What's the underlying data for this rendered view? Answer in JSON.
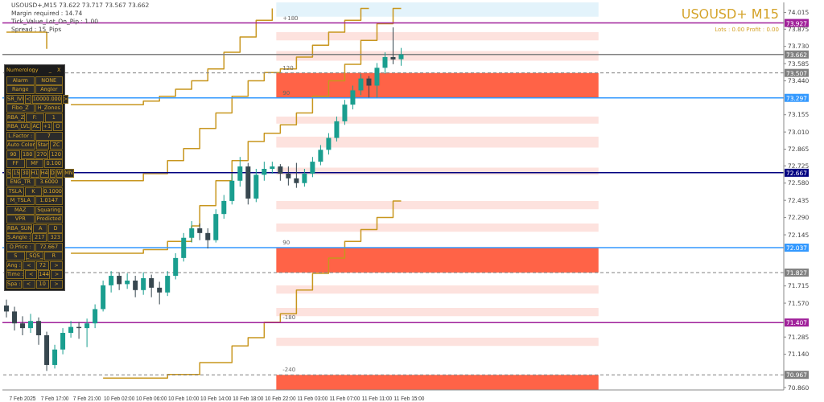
{
  "chart_data": {
    "type": "candlestick",
    "title": "USOUSD+ M15",
    "subtitle": "Lots : 0.00 Profit : 0.00",
    "categories": [
      null,
      null,
      "7 Feb 2025",
      null,
      null,
      null,
      "7 Feb 17:00",
      null,
      null,
      null,
      "7 Feb 21:00",
      null,
      null,
      null,
      "10 Feb 02:00",
      null,
      null,
      null,
      "10 Feb 06:00",
      null,
      null,
      null,
      "10 Feb 10:00",
      null,
      null,
      null,
      "10 Feb 14:00",
      null,
      null,
      null,
      "10 Feb 18:00",
      null,
      null,
      null,
      "10 Feb 22:00",
      null,
      null,
      null,
      "11 Feb 03:00",
      null,
      null,
      null,
      "11 Feb 07:00",
      null,
      null,
      null,
      "11 Feb 11:00",
      null,
      null,
      null,
      "11 Feb 15:00",
      null,
      null,
      null,
      null,
      null,
      null,
      null,
      null,
      null,
      null,
      null,
      null,
      null,
      null,
      null,
      null,
      null,
      null,
      null,
      null,
      null,
      null,
      null,
      null,
      null,
      null,
      null,
      null,
      null,
      null,
      null,
      null,
      null,
      null,
      null,
      null,
      null,
      null,
      null,
      null,
      null,
      null,
      null,
      null,
      null,
      null
    ],
    "ohlc": [
      [
        71.55,
        71.6,
        71.45,
        71.5
      ],
      [
        71.5,
        71.54,
        71.34,
        71.4
      ],
      [
        71.4,
        71.46,
        71.3,
        71.36
      ],
      [
        71.36,
        71.48,
        71.32,
        71.42
      ],
      [
        71.42,
        71.45,
        71.22,
        71.3
      ],
      [
        71.3,
        71.33,
        71.0,
        71.05
      ],
      [
        71.05,
        71.22,
        71.02,
        71.18
      ],
      [
        71.18,
        71.36,
        71.14,
        71.32
      ],
      [
        71.32,
        71.42,
        71.28,
        71.37
      ],
      [
        71.37,
        71.41,
        71.27,
        71.36
      ],
      [
        71.36,
        71.44,
        71.2,
        71.4
      ],
      [
        71.4,
        71.56,
        71.36,
        71.52
      ],
      [
        71.52,
        71.76,
        71.5,
        71.72
      ],
      [
        71.72,
        71.84,
        71.66,
        71.8
      ],
      [
        71.8,
        71.83,
        71.68,
        71.73
      ],
      [
        71.73,
        71.82,
        71.69,
        71.76
      ],
      [
        71.76,
        71.8,
        71.62,
        71.68
      ],
      [
        71.68,
        71.83,
        71.64,
        71.78
      ],
      [
        71.78,
        71.81,
        71.62,
        71.7
      ],
      [
        71.7,
        71.75,
        71.56,
        71.66
      ],
      [
        71.66,
        71.84,
        71.63,
        71.8
      ],
      [
        71.8,
        71.99,
        71.77,
        71.95
      ],
      [
        71.95,
        72.16,
        71.92,
        72.12
      ],
      [
        72.12,
        72.26,
        72.08,
        72.2
      ],
      [
        72.2,
        72.24,
        72.1,
        72.16
      ],
      [
        72.16,
        72.2,
        72.03,
        72.1
      ],
      [
        72.1,
        72.36,
        72.08,
        72.32
      ],
      [
        72.32,
        72.48,
        72.28,
        72.43
      ],
      [
        72.43,
        72.66,
        72.4,
        72.6
      ],
      [
        72.6,
        72.8,
        72.55,
        72.72
      ],
      [
        72.72,
        72.75,
        72.4,
        72.45
      ],
      [
        72.45,
        72.7,
        72.42,
        72.65
      ],
      [
        72.65,
        72.76,
        72.6,
        72.7
      ],
      [
        72.7,
        72.76,
        72.66,
        72.72
      ],
      [
        72.72,
        72.74,
        72.6,
        72.66
      ],
      [
        72.66,
        72.72,
        72.56,
        72.62
      ],
      [
        72.62,
        72.75,
        72.54,
        72.58
      ],
      [
        72.58,
        72.7,
        72.55,
        72.66
      ],
      [
        72.66,
        72.8,
        72.63,
        72.76
      ],
      [
        72.76,
        72.9,
        72.73,
        72.86
      ],
      [
        72.86,
        73.0,
        72.82,
        72.96
      ],
      [
        72.96,
        73.14,
        72.93,
        73.1
      ],
      [
        73.1,
        73.28,
        73.07,
        73.24
      ],
      [
        73.24,
        73.4,
        73.2,
        73.36
      ],
      [
        73.36,
        73.5,
        73.32,
        73.46
      ],
      [
        73.46,
        73.48,
        73.3,
        73.4
      ],
      [
        73.4,
        73.59,
        73.3,
        73.55
      ],
      [
        73.55,
        73.68,
        73.5,
        73.64
      ],
      [
        73.64,
        73.89,
        73.58,
        73.62
      ],
      [
        73.622,
        73.717,
        73.567,
        73.662
      ],
      null,
      null,
      null,
      null,
      null,
      null,
      null,
      null,
      null,
      null,
      null,
      null,
      null,
      null,
      null,
      null,
      null,
      null,
      null,
      null,
      null,
      null,
      null,
      null,
      null,
      null,
      null,
      null,
      null,
      null,
      null,
      null,
      null,
      null,
      null,
      null,
      null,
      null,
      null,
      null,
      null,
      null,
      null,
      null,
      null,
      null,
      null
    ],
    "colors": [
      "#37474f",
      "#37474f",
      "#37474f",
      "#1a9e8f",
      "#37474f",
      "#37474f",
      "#1a9e8f",
      "#1a9e8f",
      "#1a9e8f",
      "#37474f",
      "#1a9e8f",
      "#1a9e8f",
      "#1a9e8f",
      "#1a9e8f",
      "#37474f",
      "#1a9e8f",
      "#37474f",
      "#1a9e8f",
      "#37474f",
      "#37474f",
      "#1a9e8f",
      "#1a9e8f",
      "#1a9e8f",
      "#1a9e8f",
      "#37474f",
      "#37474f",
      "#1a9e8f",
      "#1a9e8f",
      "#1a9e8f",
      "#1a9e8f",
      "#37474f",
      "#1a9e8f",
      "#1a9e8f",
      "#1a9e8f",
      "#37474f",
      "#37474f",
      "#37474f",
      "#1a9e8f",
      "#1a9e8f",
      "#1a9e8f",
      "#1a9e8f",
      "#1a9e8f",
      "#1a9e8f",
      "#1a9e8f",
      "#1a9e8f",
      "#37474f",
      "#1a9e8f",
      "#1a9e8f",
      "#37474f",
      "#1a9e8f",
      null,
      null,
      null,
      null,
      null,
      null,
      null,
      null,
      null,
      null,
      null,
      null,
      null,
      null,
      null,
      null,
      null,
      null,
      null,
      null,
      null,
      null,
      null,
      null,
      null,
      null,
      null,
      null,
      null,
      null,
      null,
      null,
      null,
      null,
      null,
      null,
      null,
      null,
      null,
      null,
      null,
      null,
      null,
      null,
      null,
      null,
      null
    ],
    "series": [
      {
        "type": "step",
        "color": "#c8961e",
        "values": [
          73.85,
          73.85,
          73.85,
          73.85,
          73.85,
          73.71,
          null,
          null,
          73.24,
          73.24,
          73.24,
          73.24,
          73.24,
          73.24,
          73.24,
          73.24,
          73.24,
          73.27,
          73.27,
          73.31,
          73.31,
          73.37,
          73.37,
          73.44,
          73.44,
          73.54,
          73.54,
          73.68,
          73.68,
          73.81,
          73.81,
          73.95,
          73.95,
          74.05,
          null,
          null,
          null,
          null,
          null,
          null,
          null,
          null,
          null,
          null,
          null,
          null,
          null,
          null,
          null,
          null,
          null,
          null,
          null,
          null,
          null,
          null,
          null,
          null,
          null,
          null,
          null,
          null,
          null,
          null,
          null,
          null,
          null,
          null,
          null,
          null,
          null,
          null,
          null,
          null,
          null,
          null,
          null,
          null,
          null,
          null,
          null,
          null,
          null,
          null,
          null,
          null,
          null,
          null,
          null,
          null,
          null,
          null,
          null,
          null,
          null,
          null,
          null
        ]
      },
      {
        "type": "step",
        "color": "#c8961e",
        "values": [
          null,
          null,
          null,
          null,
          null,
          null,
          null,
          null,
          72.6,
          72.6,
          72.6,
          72.6,
          72.6,
          72.6,
          72.6,
          72.6,
          72.6,
          72.66,
          72.66,
          72.66,
          72.77,
          72.77,
          72.87,
          72.87,
          73.04,
          73.04,
          73.17,
          73.17,
          73.31,
          73.31,
          73.44,
          73.44,
          73.51,
          73.51,
          73.54,
          73.54,
          73.64,
          73.64,
          73.74,
          73.74,
          73.85,
          73.85,
          73.95,
          73.95,
          74.05,
          74.05,
          null,
          null,
          null,
          null,
          null,
          null,
          null,
          null,
          null,
          null,
          null,
          null,
          null,
          null,
          null,
          null,
          null,
          null,
          null,
          null,
          null,
          null,
          null,
          null,
          null,
          null,
          null,
          null,
          null,
          null,
          null,
          null,
          null,
          null,
          null,
          null,
          null,
          null,
          null,
          null,
          null,
          null,
          null,
          null,
          null,
          null,
          null,
          null,
          null,
          null,
          null
        ]
      },
      {
        "type": "step",
        "color": "#c8961e",
        "values": [
          null,
          null,
          null,
          null,
          null,
          null,
          null,
          null,
          71.99,
          71.99,
          71.99,
          71.99,
          71.99,
          71.99,
          71.99,
          71.99,
          71.99,
          72.02,
          72.02,
          72.02,
          72.09,
          72.09,
          72.09,
          72.22,
          72.39,
          72.39,
          72.6,
          72.6,
          72.77,
          72.77,
          72.93,
          72.93,
          73.0,
          73.0,
          73.07,
          73.07,
          73.17,
          73.17,
          73.31,
          73.31,
          73.44,
          73.44,
          73.58,
          73.58,
          73.78,
          73.78,
          73.92,
          73.92,
          74.05,
          74.05,
          null,
          null,
          null,
          null,
          null,
          null,
          null,
          null,
          null,
          null,
          null,
          null,
          null,
          null,
          null,
          null,
          null,
          null,
          null,
          null,
          null,
          null,
          null,
          null,
          null,
          null,
          null,
          null,
          null,
          null,
          null,
          null,
          null,
          null,
          null,
          null,
          null,
          null,
          null,
          null,
          null,
          null,
          null,
          null,
          null,
          null,
          null
        ]
      },
      {
        "type": "step",
        "color": "#c8961e",
        "values": [
          null,
          null,
          null,
          null,
          null,
          null,
          null,
          null,
          null,
          null,
          null,
          null,
          70.94,
          70.94,
          70.94,
          70.94,
          70.94,
          70.94,
          70.94,
          70.94,
          70.97,
          70.97,
          70.97,
          70.97,
          71.07,
          71.07,
          71.07,
          71.07,
          71.21,
          71.21,
          71.28,
          71.28,
          71.41,
          71.41,
          71.48,
          71.48,
          71.68,
          71.68,
          71.82,
          71.82,
          71.95,
          71.95,
          72.09,
          72.09,
          72.19,
          72.19,
          72.29,
          72.29,
          72.43,
          72.43,
          null,
          null,
          null,
          null,
          null,
          null,
          null,
          null,
          null,
          null,
          null,
          null,
          null,
          null,
          null,
          null,
          null,
          null,
          null,
          null,
          null,
          null,
          null,
          null,
          null,
          null,
          null,
          null,
          null,
          null,
          null,
          null,
          null,
          null,
          null,
          null,
          null,
          null,
          null,
          null,
          null,
          null,
          null,
          null,
          null,
          null,
          null
        ]
      }
    ],
    "ylim": [
      70.84,
      74.1
    ],
    "yticks": [
      74.015,
      73.875,
      {
        "value": 73.73,
        "label": "73.730"
      },
      73.585,
      {
        "value": 73.44,
        "label": "73.440"
      },
      73.155,
      {
        "value": 73.01,
        "label": "73.010"
      },
      72.865,
      72.725,
      {
        "value": 72.58,
        "label": "72.580"
      },
      72.435,
      {
        "value": 72.29,
        "label": "72.290"
      },
      72.145,
      71.715,
      {
        "value": 71.57,
        "label": "71.570"
      },
      71.285,
      {
        "value": 71.14,
        "label": "71.140"
      },
      {
        "value": 70.86,
        "label": "70.860"
      }
    ],
    "ref_lines": [
      {
        "axis": "y",
        "value": 73.927,
        "label": "73.927",
        "color": "#a0209a",
        "line_style": "solid"
      },
      {
        "axis": "y",
        "value": 73.662,
        "label": "73.662",
        "color": "#808080",
        "line_style": "solid"
      },
      {
        "axis": "y",
        "value": 73.507,
        "label": "73.507",
        "color": "#808080",
        "line_style": "dashed"
      },
      {
        "axis": "y",
        "value": 73.297,
        "label": "73.297",
        "color": "#3399ff",
        "line_style": "solid"
      },
      {
        "axis": "y",
        "value": 72.667,
        "label": "72.667",
        "color": "#000080",
        "line_style": "solid"
      },
      {
        "axis": "y",
        "value": 72.037,
        "label": "72.037",
        "color": "#3399ff",
        "line_style": "solid"
      },
      {
        "axis": "y",
        "value": 71.827,
        "label": "71.827",
        "color": "#808080",
        "line_style": "dashed"
      },
      {
        "axis": "y",
        "value": 71.407,
        "label": "71.407",
        "color": "#a0209a",
        "line_style": "solid"
      },
      {
        "axis": "y",
        "value": 70.967,
        "label": "70.967",
        "color": "#808080",
        "line_style": "dashed"
      }
    ],
    "bands": [
      {
        "axis": "y",
        "from": 73.98,
        "to": 74.1,
        "color": "#e3f3fb"
      },
      {
        "axis": "y",
        "from": 73.78,
        "to": 73.85,
        "color": "#fde2de"
      },
      {
        "axis": "y",
        "from": 73.61,
        "to": 73.69,
        "color": "#fde2de"
      },
      {
        "axis": "y",
        "from": 73.297,
        "to": 73.507,
        "color": "#ff6347"
      },
      {
        "axis": "y",
        "from": 73.08,
        "to": 73.14,
        "color": "#fde2de"
      },
      {
        "axis": "y",
        "from": 72.88,
        "to": 72.97,
        "color": "#fde2de"
      },
      {
        "axis": "y",
        "from": 72.65,
        "to": 72.71,
        "color": "#fde2de"
      },
      {
        "axis": "y",
        "from": 72.36,
        "to": 72.43,
        "color": "#fde2de"
      },
      {
        "axis": "y",
        "from": 72.17,
        "to": 72.24,
        "color": "#fde2de"
      },
      {
        "axis": "y",
        "from": 71.827,
        "to": 72.037,
        "color": "#ff6347"
      },
      {
        "axis": "y",
        "from": 71.65,
        "to": 71.72,
        "color": "#fde2de"
      },
      {
        "axis": "y",
        "from": 71.46,
        "to": 71.53,
        "color": "#fde2de"
      },
      {
        "axis": "y",
        "from": 71.21,
        "to": 71.28,
        "color": "#fde2de"
      },
      {
        "axis": "y",
        "from": 70.84,
        "to": 70.967,
        "color": "#ff6347"
      }
    ],
    "annotations": [
      "USOUSD+,M15  73.622 73.717 73.567 73.662",
      "Margin required : 14.74",
      "Tick_Value_Lot_On_Pip : 1.00",
      "Spread : 15_Pips",
      "Numerology",
      "_",
      "X",
      "Alarm",
      "NONE",
      "Range",
      "Angler",
      "SR_IVI",
      "<",
      "10000.000",
      ">",
      "Fibo_Z",
      "H_Zones",
      "RBA_Z",
      "F:",
      "1",
      "RBA_LVL",
      "AC",
      "+1",
      "O",
      "L.Factor :",
      "7",
      "Auto Color",
      "Star",
      "ZC",
      "90",
      "180",
      "270",
      "120",
      "FF",
      "MF",
      "0.100",
      "5",
      "15",
      "30",
      "H1",
      "H4",
      "D",
      "W",
      "MN",
      "ENG_TR",
      "3.6000",
      "TSLA",
      "K",
      "0.1000",
      "M_TSLA",
      "1.0147",
      "MAZ",
      "Squaring",
      "VPR",
      "Predicted",
      "RBA_SUN",
      "A",
      "D",
      "S.Angle :",
      "217",
      "323",
      "O.Price :",
      "72.667",
      "S",
      "_SQS_",
      "R",
      "Ang :",
      "<",
      "72",
      ">",
      "Time :",
      "<",
      "144",
      ">",
      "Spa :",
      "<",
      "10",
      ">",
      {
        "text": "+180",
        "y": 73.927
      },
      {
        "text": "120",
        "y": 73.507
      },
      {
        "text": "90",
        "y": 73.297
      },
      {
        "text": "90",
        "y": 72.037
      },
      {
        "text": "-180",
        "y": 71.407
      },
      {
        "text": "-240",
        "y": 70.967
      }
    ]
  }
}
